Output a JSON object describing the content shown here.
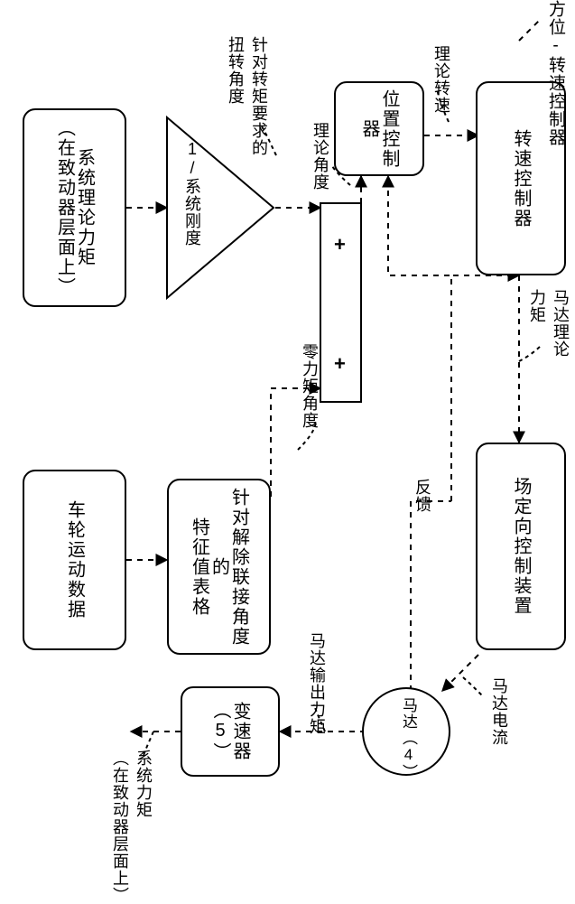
{
  "title_outer": "方位-转速控制器",
  "blocks": {
    "sys_theory_torque": "系统理论力矩\n（在致动器层面上）",
    "wheel_motion_data": "车轮运动数据",
    "one_over_stiffness": "1/系统刚度",
    "decouple_table": "针对解除联接角度的\n特征值表格",
    "pos_controller": "位置控制器",
    "speed_controller": "转速控制器",
    "field_oriented": "场定向控制装置",
    "motor": "马达（4）",
    "gearbox": "变速器（5）"
  },
  "labels": {
    "twist_angle_for_torque": "针对转矩要求的\n扭转角度",
    "zero_torque_angle": "零力矩角度",
    "theory_angle": "理论角度",
    "theory_speed": "理论转速",
    "motor_theory_torque": "马达理论\n力矩",
    "motor_current": "马达电流",
    "motor_output_torque": "马达输出力矩",
    "system_torque_out": "系统力矩\n（在致动器层面上）",
    "feedback": "反馈"
  },
  "symbols": {
    "plus": "+"
  },
  "style": {
    "bg": "#ffffff",
    "stroke": "#000000",
    "dash": "6,6",
    "font_main": 20,
    "font_label": 18,
    "border_radius": 14,
    "line_width": 2
  },
  "geometry_note": "All coordinates are eyeballed from the 637x1000 raster; exact pixel fidelity not required."
}
